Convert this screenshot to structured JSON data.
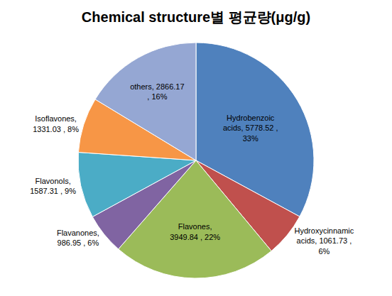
{
  "chart_data": {
    "type": "pie",
    "title": "Chemical structure별 평균량(μg/g)",
    "categories": [
      "Hydrobenzoic acids",
      "Hydroxycinnamic acids",
      "Flavones",
      "Flavanones",
      "Flavonols",
      "Isoflavones",
      "others"
    ],
    "values": [
      5778.52,
      1061.73,
      3949.84,
      986.95,
      1587.31,
      1331.03,
      2866.17
    ],
    "value_labels": [
      "Hydrobenzoic acids, 5778.52 , 33%",
      "Hydroxycinnamic acids, 1061.73 , 6%",
      "Flavones, 3949.84 , 22%",
      "Flavanones, 986.95 , 6%",
      "Flavonols, 1587.31 , 9%",
      "Isoflavones, 1331.03 , 8%",
      "others, 2866.17 , 16%"
    ],
    "colors": [
      "#4F81BD",
      "#C0504D",
      "#9BBB59",
      "#8064A2",
      "#4BACC6",
      "#F79646",
      "#95A7D3"
    ],
    "data_labels": true
  }
}
